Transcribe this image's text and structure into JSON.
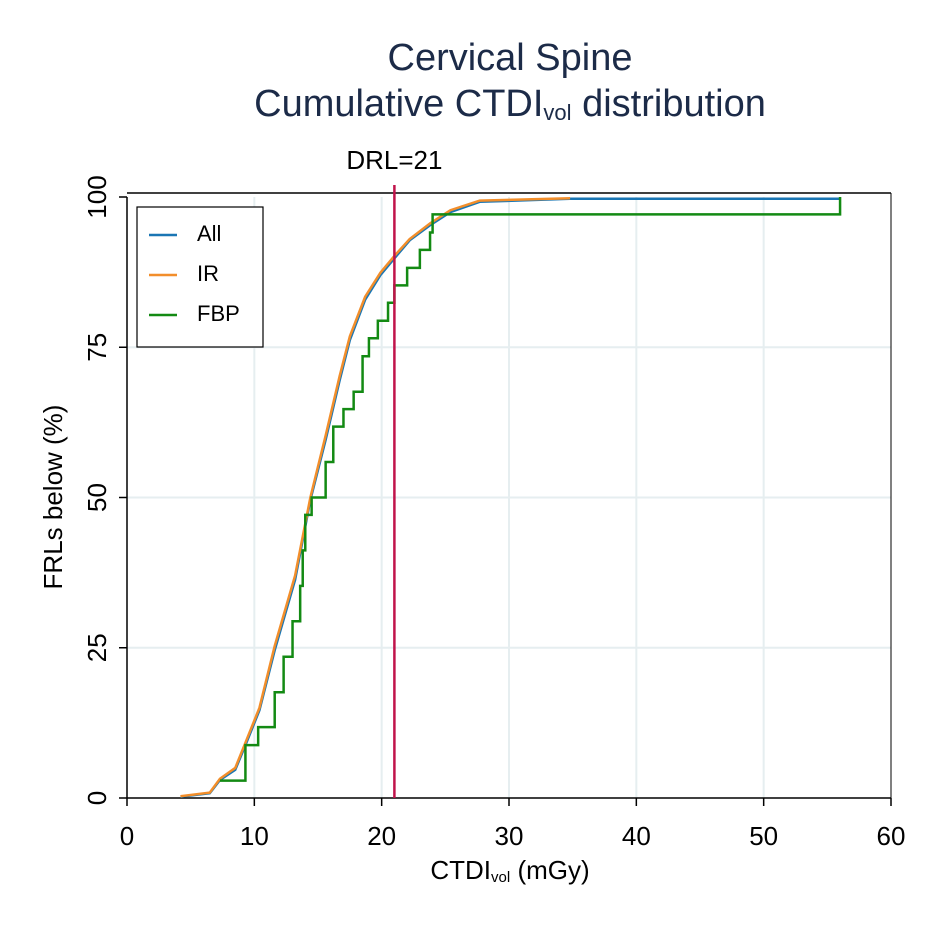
{
  "chart_data": {
    "type": "line",
    "title": "Cervical Spine",
    "subtitle": {
      "text": "Cumulative CTDI",
      "subscript": "vol",
      "suffix": " distribution"
    },
    "x_label": {
      "text": "CTDI",
      "subscript": "vol",
      "suffix": " (mGy)"
    },
    "y_label": "FRLs below (%)",
    "xlim": [
      0,
      60
    ],
    "xticks": [
      0,
      10,
      20,
      30,
      40,
      50,
      60
    ],
    "ylim": [
      0,
      100
    ],
    "yticks": [
      0,
      25,
      50,
      75,
      100
    ],
    "grid": true,
    "legend": "upper left",
    "annotations": [
      {
        "x": 21,
        "label": "DRL=21",
        "color": "#c0134a"
      }
    ],
    "series": [
      {
        "name": "All",
        "color": "#1a76b4",
        "step": false,
        "x": [
          4.2,
          6.5,
          7.3,
          8.5,
          9.3,
          10.4,
          11.6,
          13.2,
          14.4,
          15.6,
          16.7,
          17.5,
          18.7,
          19.9,
          21,
          22.2,
          23.8,
          25.4,
          27.7,
          34.8,
          56
        ],
        "values": [
          0.2,
          0.8,
          3,
          4.7,
          8.8,
          14.6,
          24.6,
          36.3,
          49.6,
          59.6,
          69.5,
          76.2,
          82.9,
          87,
          89.8,
          92.8,
          95.3,
          97.5,
          99.2,
          99.7,
          99.7
        ]
      },
      {
        "name": "IR",
        "color": "#f28e2b",
        "step": false,
        "x": [
          4.2,
          6.5,
          7.3,
          8.5,
          9.3,
          10.4,
          11.6,
          13.2,
          14.4,
          15.6,
          16.7,
          17.5,
          18.7,
          19.9,
          21,
          22.2,
          23.8,
          25.4,
          27.7,
          34.8
        ],
        "values": [
          0.3,
          0.9,
          3.2,
          5,
          9.2,
          15,
          25.3,
          37,
          50,
          60.3,
          70.2,
          76.8,
          83.4,
          87.4,
          90.2,
          93,
          95.6,
          97.8,
          99.4,
          99.8
        ]
      },
      {
        "name": "FBP",
        "color": "#138a13",
        "step": true,
        "x": [
          7.3,
          9.3,
          10.3,
          11.6,
          12.3,
          13.0,
          13.6,
          13.8,
          14.0,
          14.5,
          15.6,
          16.2,
          17.0,
          17.8,
          18.5,
          19.0,
          19.7,
          20.5,
          21.0,
          22.0,
          23.0,
          23.8,
          24.0,
          56.0
        ],
        "values": [
          2.9,
          8.8,
          11.8,
          17.6,
          23.5,
          29.4,
          35.3,
          41.2,
          47.1,
          50,
          55.9,
          61.8,
          64.7,
          67.6,
          73.5,
          76.5,
          79.4,
          82.4,
          85.3,
          88.2,
          91.2,
          94.1,
          97.1,
          100
        ]
      }
    ]
  }
}
